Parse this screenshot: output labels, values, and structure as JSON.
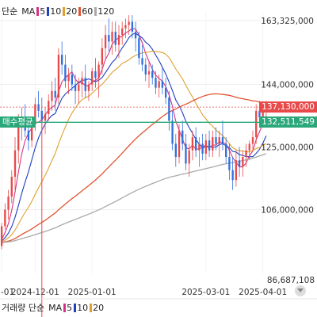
{
  "legend_top": {
    "chart_type": "단순",
    "ma_label": "MA",
    "periods": [
      {
        "label": "5",
        "color": "#d63384"
      },
      {
        "label": "10",
        "color": "#1f3fbf"
      },
      {
        "label": "20",
        "color": "#e0a030"
      },
      {
        "label": "60",
        "color": "#e05533"
      },
      {
        "label": "120",
        "color": "#aaaaaa"
      }
    ]
  },
  "legend_bottom": {
    "title": "거래량 단순",
    "ma_label": "MA",
    "periods": [
      {
        "label": "5",
        "color": "#d63384"
      },
      {
        "label": "10",
        "color": "#1f3fbf"
      },
      {
        "label": "20",
        "color": "#e0a030"
      }
    ]
  },
  "avg_buy": {
    "label": "매수평균",
    "price_label": "132,511,549",
    "value": 132511549,
    "color": "#2aa87a"
  },
  "current_price": {
    "label": "137,130,000",
    "value": 137130000,
    "color": "#e84a4a"
  },
  "bottom_right_label": "86,687,108",
  "chart_data": {
    "type": "candlestick",
    "y_axis_labels": [
      {
        "label": "163,325,000",
        "value": 163325000
      },
      {
        "label": "144,000,000",
        "value": 144000000
      },
      {
        "label": "125,000,000",
        "value": 125000000
      },
      {
        "label": "106,000,000",
        "value": 106000000
      }
    ],
    "x_axis_labels": [
      {
        "label": "-01",
        "index": 0
      },
      {
        "label": "2024-12-01",
        "index": 10
      },
      {
        "label": "2025-01-01",
        "index": 27
      },
      {
        "label": "2025-03-01",
        "index": 61
      },
      {
        "label": "2025-04-01",
        "index": 78
      }
    ],
    "ylim": [
      86687108,
      166000000
    ],
    "candles": [
      [
        95,
        102,
        94,
        101
      ],
      [
        101,
        108,
        100,
        106
      ],
      [
        106,
        112,
        103,
        110
      ],
      [
        110,
        118,
        108,
        116
      ],
      [
        116,
        128,
        112,
        124
      ],
      [
        124,
        135,
        120,
        131
      ],
      [
        131,
        137,
        127,
        134
      ],
      [
        134,
        138,
        128,
        130
      ],
      [
        130,
        134,
        124,
        127
      ],
      [
        127,
        133,
        125,
        132
      ],
      [
        132,
        140,
        130,
        138
      ],
      [
        138,
        142,
        134,
        136
      ],
      [
        136,
        140,
        131,
        133
      ],
      [
        133,
        137,
        129,
        135
      ],
      [
        135,
        141,
        133,
        139
      ],
      [
        139,
        145,
        136,
        142
      ],
      [
        142,
        146,
        136,
        140
      ],
      [
        140,
        155,
        138,
        153
      ],
      [
        153,
        157,
        147,
        150
      ],
      [
        150,
        153,
        143,
        145
      ],
      [
        145,
        149,
        141,
        147
      ],
      [
        147,
        150,
        142,
        144
      ],
      [
        144,
        147,
        138,
        142
      ],
      [
        142,
        146,
        138,
        144
      ],
      [
        144,
        148,
        140,
        146
      ],
      [
        146,
        150,
        140,
        142
      ],
      [
        142,
        145,
        139,
        144
      ],
      [
        144,
        149,
        142,
        148
      ],
      [
        148,
        152,
        143,
        146
      ],
      [
        146,
        151,
        140,
        150
      ],
      [
        150,
        158,
        147,
        155
      ],
      [
        155,
        162,
        152,
        159
      ],
      [
        159,
        164,
        154,
        157
      ],
      [
        157,
        163,
        153,
        160
      ],
      [
        160,
        163,
        154,
        156
      ],
      [
        156,
        162,
        152,
        159
      ],
      [
        159,
        163,
        156,
        161
      ],
      [
        161,
        164,
        158,
        162
      ],
      [
        162,
        165,
        159,
        163
      ],
      [
        163,
        165,
        158,
        160
      ],
      [
        160,
        163,
        154,
        158
      ],
      [
        158,
        160,
        150,
        152
      ],
      [
        152,
        156,
        148,
        150
      ],
      [
        150,
        152,
        145,
        147
      ],
      [
        147,
        151,
        143,
        148
      ],
      [
        148,
        150,
        144,
        146
      ],
      [
        146,
        148,
        141,
        143
      ],
      [
        143,
        147,
        140,
        145
      ],
      [
        145,
        149,
        141,
        143
      ],
      [
        143,
        146,
        138,
        140
      ],
      [
        140,
        142,
        130,
        133
      ],
      [
        133,
        136,
        124,
        126
      ],
      [
        126,
        129,
        119,
        122
      ],
      [
        122,
        132,
        120,
        130
      ],
      [
        130,
        133,
        124,
        126
      ],
      [
        126,
        129,
        118,
        120
      ],
      [
        120,
        126,
        116,
        124
      ],
      [
        124,
        130,
        121,
        128
      ],
      [
        128,
        131,
        122,
        124
      ],
      [
        124,
        128,
        119,
        126
      ],
      [
        126,
        129,
        121,
        123
      ],
      [
        123,
        129,
        121,
        127
      ],
      [
        127,
        130,
        122,
        124
      ],
      [
        124,
        130,
        122,
        128
      ],
      [
        128,
        131,
        124,
        126
      ],
      [
        126,
        130,
        122,
        128
      ],
      [
        128,
        133,
        124,
        126
      ],
      [
        126,
        128,
        120,
        122
      ],
      [
        122,
        126,
        115,
        118
      ],
      [
        118,
        122,
        112,
        115
      ],
      [
        115,
        124,
        113,
        121
      ],
      [
        121,
        125,
        116,
        119
      ],
      [
        119,
        124,
        116,
        122
      ],
      [
        122,
        126,
        119,
        124
      ],
      [
        124,
        127,
        121,
        126
      ],
      [
        126,
        130,
        124,
        128
      ],
      [
        128,
        138,
        126,
        136
      ],
      [
        136,
        139,
        131,
        134
      ],
      [
        134,
        138,
        131,
        137
      ],
      [
        137,
        139,
        134,
        137.13
      ]
    ],
    "moving_averages": [
      {
        "name": "5",
        "color": "#d63384"
      },
      {
        "name": "10",
        "color": "#1f3fbf"
      },
      {
        "name": "20",
        "color": "#e0a030"
      },
      {
        "name": "60",
        "color": "#e05533"
      },
      {
        "name": "120",
        "color": "#aaaaaa"
      }
    ],
    "candle_unit": 1000000,
    "up_color": "#e84a4a",
    "down_color": "#2f6fe0",
    "vertical_marker_index": 12,
    "grid": true
  }
}
